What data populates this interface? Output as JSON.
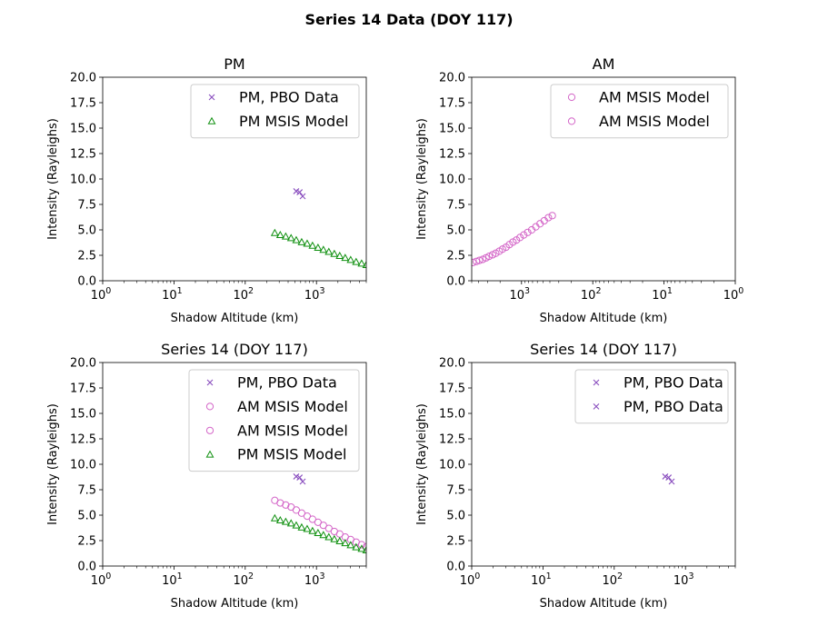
{
  "figure_title": "Series 14 Data (DOY 117)",
  "colors": {
    "pbo": "#8a4fbf",
    "am": "#d466c8",
    "pm": "#109010"
  },
  "chart_data": [
    {
      "type": "scatter",
      "title": "PM",
      "xlabel": "Shadow Altitude (km)",
      "ylabel": "Intensity (Rayleighs)",
      "xscale": "log",
      "xlim": [
        1,
        5000
      ],
      "ylim": [
        0,
        20
      ],
      "yticks": [
        "0.0",
        "2.5",
        "5.0",
        "7.5",
        "10.0",
        "12.5",
        "15.0",
        "17.5",
        "20.0"
      ],
      "xticks": [
        {
          "base": "10",
          "exp": "0"
        },
        {
          "base": "10",
          "exp": "1"
        },
        {
          "base": "10",
          "exp": "2"
        },
        {
          "base": "10",
          "exp": "3"
        }
      ],
      "legend_position": "top-right",
      "legend": [
        {
          "label": "PM, PBO Data",
          "marker": "x",
          "color": "pbo"
        },
        {
          "label": "PM MSIS Model",
          "marker": "triangle",
          "color": "pm"
        }
      ],
      "series": [
        {
          "name": "PM, PBO Data",
          "marker": "x",
          "color": "pbo",
          "x": [
            520,
            580,
            640
          ],
          "y": [
            8.8,
            8.7,
            8.3
          ]
        },
        {
          "name": "PM MSIS Model",
          "marker": "triangle",
          "color": "pm",
          "x": [
            260,
            310,
            370,
            440,
            520,
            620,
            740,
            880,
            1050,
            1250,
            1490,
            1780,
            2120,
            2530,
            3020,
            3600,
            4300,
            5000
          ],
          "y": [
            4.7,
            4.5,
            4.35,
            4.2,
            4.0,
            3.8,
            3.65,
            3.45,
            3.25,
            3.05,
            2.85,
            2.65,
            2.45,
            2.25,
            2.05,
            1.85,
            1.7,
            1.55
          ]
        }
      ]
    },
    {
      "type": "scatter",
      "title": "AM",
      "xlabel": "Shadow Altitude (km)",
      "ylabel": "Intensity (Rayleighs)",
      "xscale": "log",
      "x_inverted": true,
      "xlim": [
        5000,
        1
      ],
      "ylim": [
        0,
        20
      ],
      "yticks": [
        "0.0",
        "2.5",
        "5.0",
        "7.5",
        "10.0",
        "12.5",
        "15.0",
        "17.5",
        "20.0"
      ],
      "xticks": [
        {
          "base": "10",
          "exp": "3"
        },
        {
          "base": "10",
          "exp": "2"
        },
        {
          "base": "10",
          "exp": "1"
        },
        {
          "base": "10",
          "exp": "0"
        }
      ],
      "legend_position": "top-right",
      "legend": [
        {
          "label": "AM MSIS Model",
          "marker": "circle",
          "color": "am"
        },
        {
          "label": "AM MSIS Model",
          "marker": "circle",
          "color": "am"
        }
      ],
      "series": [
        {
          "name": "AM MSIS Model",
          "marker": "circle",
          "color": "am",
          "x": [
            4800,
            4300,
            3900,
            3500,
            3150,
            2850,
            2550,
            2300,
            2050,
            1850,
            1650,
            1480,
            1320,
            1180,
            1050,
            930,
            820,
            720,
            630,
            550,
            480,
            420,
            370
          ],
          "y": [
            1.8,
            1.9,
            2.0,
            2.1,
            2.25,
            2.4,
            2.55,
            2.7,
            2.9,
            3.1,
            3.3,
            3.55,
            3.8,
            4.0,
            4.25,
            4.5,
            4.75,
            5.0,
            5.3,
            5.6,
            5.9,
            6.2,
            6.4
          ]
        }
      ]
    },
    {
      "type": "scatter",
      "title": "Series 14 (DOY 117)",
      "xlabel": "Shadow Altitude (km)",
      "ylabel": "Intensity (Rayleighs)",
      "xscale": "log",
      "xlim": [
        1,
        5000
      ],
      "ylim": [
        0,
        20
      ],
      "yticks": [
        "0.0",
        "2.5",
        "5.0",
        "7.5",
        "10.0",
        "12.5",
        "15.0",
        "17.5",
        "20.0"
      ],
      "xticks": [
        {
          "base": "10",
          "exp": "0"
        },
        {
          "base": "10",
          "exp": "1"
        },
        {
          "base": "10",
          "exp": "2"
        },
        {
          "base": "10",
          "exp": "3"
        }
      ],
      "legend_position": "top-right",
      "legend": [
        {
          "label": "PM, PBO Data",
          "marker": "x",
          "color": "pbo"
        },
        {
          "label": "AM MSIS Model",
          "marker": "circle",
          "color": "am"
        },
        {
          "label": "AM MSIS Model",
          "marker": "circle",
          "color": "am"
        },
        {
          "label": "PM MSIS Model",
          "marker": "triangle",
          "color": "pm"
        }
      ],
      "series": [
        {
          "name": "PM, PBO Data",
          "marker": "x",
          "color": "pbo",
          "x": [
            520,
            580,
            640
          ],
          "y": [
            8.8,
            8.7,
            8.3
          ]
        },
        {
          "name": "AM MSIS Model",
          "marker": "circle",
          "color": "am",
          "x": [
            260,
            310,
            370,
            440,
            520,
            620,
            740,
            880,
            1050,
            1250,
            1490,
            1780,
            2120,
            2530,
            3020,
            3600,
            4300,
            5000
          ],
          "y": [
            6.45,
            6.2,
            6.0,
            5.8,
            5.5,
            5.2,
            4.9,
            4.6,
            4.3,
            4.0,
            3.7,
            3.4,
            3.15,
            2.85,
            2.6,
            2.35,
            2.1,
            1.9
          ]
        },
        {
          "name": "PM MSIS Model",
          "marker": "triangle",
          "color": "pm",
          "x": [
            260,
            310,
            370,
            440,
            520,
            620,
            740,
            880,
            1050,
            1250,
            1490,
            1780,
            2120,
            2530,
            3020,
            3600,
            4300,
            5000
          ],
          "y": [
            4.7,
            4.5,
            4.35,
            4.2,
            4.0,
            3.8,
            3.65,
            3.45,
            3.25,
            3.05,
            2.85,
            2.65,
            2.45,
            2.25,
            2.05,
            1.85,
            1.7,
            1.55
          ]
        }
      ]
    },
    {
      "type": "scatter",
      "title": "Series 14 (DOY 117)",
      "xlabel": "Shadow Altitude (km)",
      "ylabel": "Intensity (Rayleighs)",
      "xscale": "log",
      "xlim": [
        1,
        5000
      ],
      "ylim": [
        0,
        20
      ],
      "yticks": [
        "0.0",
        "2.5",
        "5.0",
        "7.5",
        "10.0",
        "12.5",
        "15.0",
        "17.5",
        "20.0"
      ],
      "xticks": [
        {
          "base": "10",
          "exp": "0"
        },
        {
          "base": "10",
          "exp": "1"
        },
        {
          "base": "10",
          "exp": "2"
        },
        {
          "base": "10",
          "exp": "3"
        }
      ],
      "legend_position": "top-right",
      "legend": [
        {
          "label": "PM, PBO Data",
          "marker": "x",
          "color": "pbo"
        },
        {
          "label": "PM, PBO Data",
          "marker": "x",
          "color": "pbo"
        }
      ],
      "series": [
        {
          "name": "PM, PBO Data",
          "marker": "x",
          "color": "pbo",
          "x": [
            520,
            580,
            640
          ],
          "y": [
            8.8,
            8.7,
            8.3
          ]
        }
      ]
    }
  ]
}
